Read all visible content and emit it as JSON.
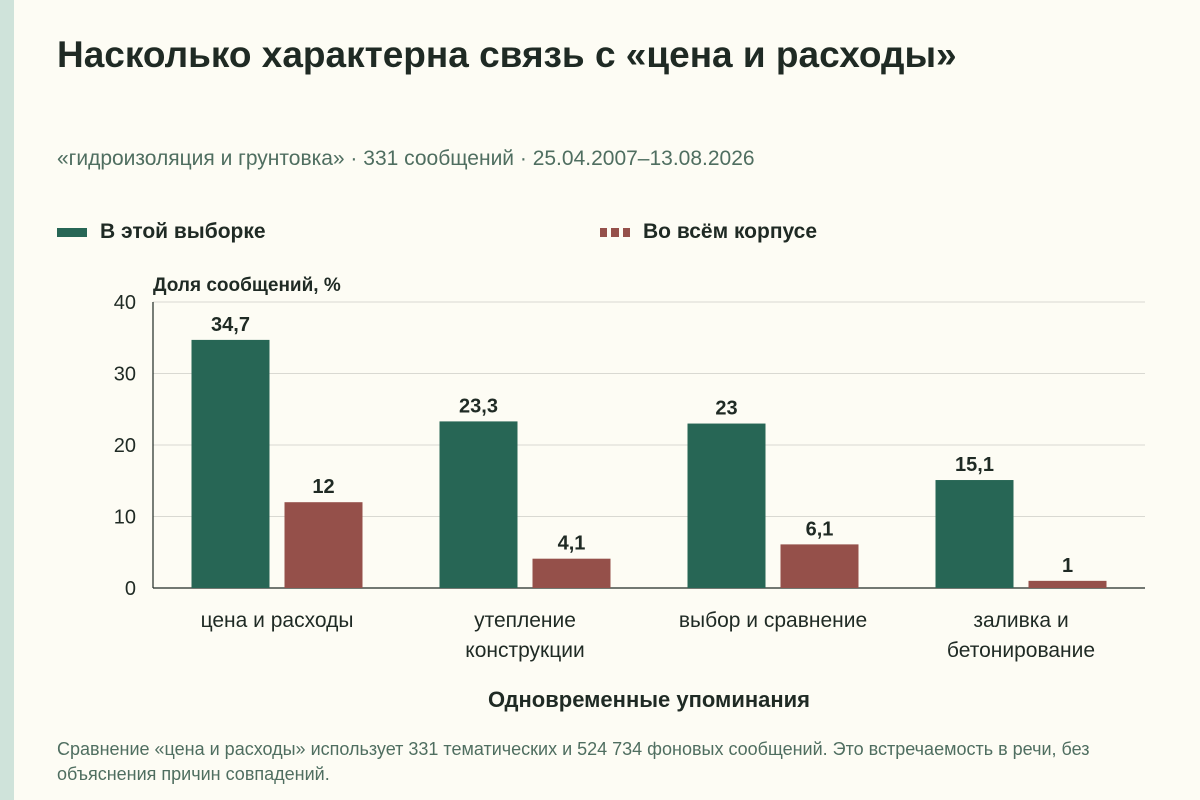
{
  "header": {
    "title": "Насколько характерна связь с «цена и расходы»",
    "subtitle": "«гидроизоляция и грунтовка» · 331 сообщений · 25.04.2007–13.08.2026"
  },
  "footnote": "Сравнение «цена и расходы» использует 331 тематических и 524 734 фоновых сообщений. Это встречаемость в речи, без объяснения причин совпадений.",
  "colors": {
    "sample": "#276655",
    "corpus": "#95504a",
    "grid": "#d9d9d2",
    "axis": "#1f2a24"
  },
  "chart_data": {
    "type": "bar",
    "categories": [
      [
        "цена и расходы"
      ],
      [
        "утепление",
        "конструкции"
      ],
      [
        "выбор и сравнение"
      ],
      [
        "заливка и",
        "бетонирование"
      ]
    ],
    "series": [
      {
        "name": "В этой выборке",
        "values": [
          34.7,
          23.3,
          23,
          15.1
        ],
        "labels": [
          "34,7",
          "23,3",
          "23",
          "15,1"
        ]
      },
      {
        "name": "Во всём корпусе",
        "values": [
          12,
          4.1,
          6.1,
          1
        ],
        "labels": [
          "12",
          "4,1",
          "6,1",
          "1"
        ]
      }
    ],
    "ylabel": "Доля сообщений, %",
    "xlabel": "Одновременные упоминания",
    "ylim": [
      0,
      40
    ],
    "yticks": [
      0,
      10,
      20,
      30,
      40
    ],
    "grid": true,
    "legend_position": "top"
  }
}
